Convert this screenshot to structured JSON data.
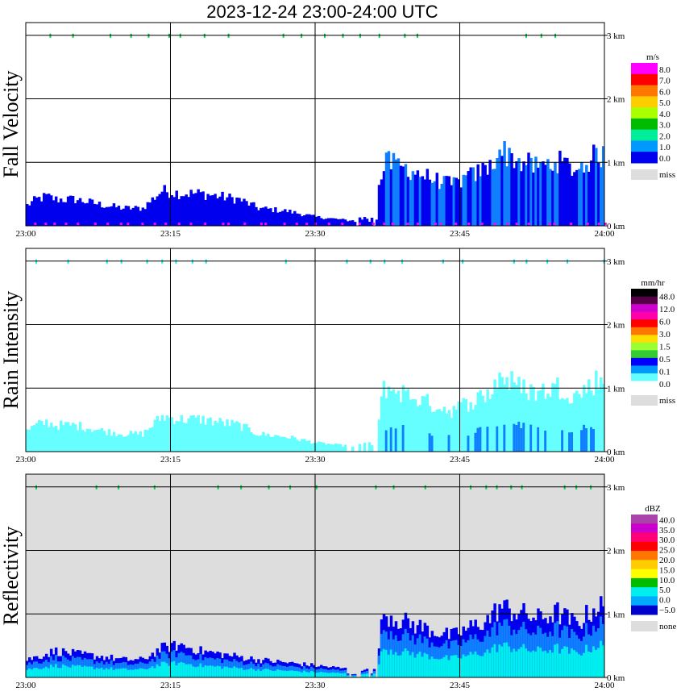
{
  "title": "2023-12-24   23:00-24:00 UTC",
  "x_ticks": [
    "23:00",
    "23:15",
    "23:30",
    "23:45",
    "24:00"
  ],
  "y_ticks": [
    "0 km",
    "1 km",
    "2 km",
    "3 km"
  ],
  "colors": {
    "ice_blue": "#0000ee",
    "cyan_light": "#66ffff",
    "mid_blue": "#0f7fff",
    "bg_gray": "#dddddd",
    "green": "#00cc44"
  },
  "chart_data": [
    {
      "type": "heatmap",
      "ylabel": "Fall Velocity",
      "x_range": [
        "23:00",
        "24:00"
      ],
      "y_range_km": [
        0,
        3.2
      ],
      "grid": true,
      "background": "white",
      "colorbar": {
        "unit": "m/s",
        "labels": [
          "8.0",
          "7.0",
          "6.0",
          "5.0",
          "4.0",
          "3.0",
          "2.0",
          "1.0",
          "0.0"
        ],
        "colors": [
          "#ff00ff",
          "#ff0000",
          "#ff7700",
          "#ffcc00",
          "#aaff00",
          "#00bb00",
          "#00ee99",
          "#0099ff",
          "#0000ee"
        ],
        "miss_label": "miss",
        "miss_color": "#dddddd"
      },
      "echo_top_km": [
        [
          0,
          0.35
        ],
        [
          1,
          0.45
        ],
        [
          2,
          0.5
        ],
        [
          3,
          0.45
        ],
        [
          5,
          0.45
        ],
        [
          8,
          0.35
        ],
        [
          10,
          0.3
        ],
        [
          12,
          0.3
        ],
        [
          14,
          0.6
        ],
        [
          16,
          0.55
        ],
        [
          18,
          0.55
        ],
        [
          20,
          0.5
        ],
        [
          22,
          0.45
        ],
        [
          24,
          0.3
        ],
        [
          27,
          0.25
        ],
        [
          30,
          0.15
        ],
        [
          33,
          0.1
        ],
        [
          36,
          0.1
        ],
        [
          37,
          1.1
        ],
        [
          39,
          1.0
        ],
        [
          42,
          0.8
        ],
        [
          44,
          0.7
        ],
        [
          46,
          0.85
        ],
        [
          48,
          1.0
        ],
        [
          49,
          1.3
        ],
        [
          51,
          1.1
        ],
        [
          53,
          1.0
        ],
        [
          55,
          1.1
        ],
        [
          57,
          0.95
        ],
        [
          59,
          1.2
        ],
        [
          60,
          1.2
        ]
      ]
    },
    {
      "type": "heatmap",
      "ylabel": "Rain Intensity",
      "x_range": [
        "23:00",
        "24:00"
      ],
      "y_range_km": [
        0,
        3.2
      ],
      "grid": true,
      "background": "white",
      "colorbar": {
        "unit": "mm/hr",
        "labels": [
          "48.0",
          "12.0",
          "6.0",
          "3.0",
          "1.5",
          "0.5",
          "0.1",
          "0.0"
        ],
        "colors": [
          "#000000",
          "#550044",
          "#cc00cc",
          "#ff00aa",
          "#ff0000",
          "#ff7700",
          "#ffdd00",
          "#99ff33",
          "#33cc33",
          "#0000ff",
          "#0099ff",
          "#66ffff",
          "#ffffff"
        ],
        "miss_label": "miss",
        "miss_color": "#dddddd"
      },
      "echo_top_km": [
        [
          0,
          0.35
        ],
        [
          1,
          0.45
        ],
        [
          2,
          0.5
        ],
        [
          3,
          0.45
        ],
        [
          5,
          0.45
        ],
        [
          8,
          0.35
        ],
        [
          10,
          0.3
        ],
        [
          12,
          0.3
        ],
        [
          14,
          0.6
        ],
        [
          16,
          0.55
        ],
        [
          18,
          0.55
        ],
        [
          20,
          0.5
        ],
        [
          22,
          0.45
        ],
        [
          24,
          0.3
        ],
        [
          27,
          0.25
        ],
        [
          30,
          0.15
        ],
        [
          33,
          0.1
        ],
        [
          36,
          0.1
        ],
        [
          37,
          1.1
        ],
        [
          39,
          1.0
        ],
        [
          42,
          0.8
        ],
        [
          44,
          0.7
        ],
        [
          46,
          0.85
        ],
        [
          48,
          1.0
        ],
        [
          49,
          1.3
        ],
        [
          51,
          1.1
        ],
        [
          53,
          1.0
        ],
        [
          55,
          1.1
        ],
        [
          57,
          0.95
        ],
        [
          59,
          1.2
        ],
        [
          60,
          1.2
        ]
      ]
    },
    {
      "type": "heatmap",
      "ylabel": "Reflectivity",
      "x_range": [
        "23:00",
        "24:00"
      ],
      "y_range_km": [
        0,
        3.2
      ],
      "grid": true,
      "background": "gray",
      "colorbar": {
        "unit": "dBZ",
        "labels": [
          "40.0",
          "35.0",
          "30.0",
          "25.0",
          "20.0",
          "15.0",
          "10.0",
          "5.0",
          "0.0",
          "−5.0"
        ],
        "colors": [
          "#aa44aa",
          "#cc00cc",
          "#ff0077",
          "#ff0000",
          "#ff7700",
          "#ffcc00",
          "#ffff00",
          "#00bb00",
          "#00eeee",
          "#00aaff",
          "#0000cc"
        ],
        "miss_label": "none",
        "miss_color": "#dddddd"
      },
      "echo_top_km": [
        [
          0,
          0.3
        ],
        [
          1,
          0.35
        ],
        [
          2,
          0.4
        ],
        [
          3,
          0.45
        ],
        [
          5,
          0.4
        ],
        [
          8,
          0.35
        ],
        [
          10,
          0.3
        ],
        [
          12,
          0.3
        ],
        [
          14,
          0.5
        ],
        [
          16,
          0.55
        ],
        [
          18,
          0.45
        ],
        [
          20,
          0.4
        ],
        [
          22,
          0.35
        ],
        [
          24,
          0.3
        ],
        [
          27,
          0.25
        ],
        [
          30,
          0.2
        ],
        [
          33,
          0.15
        ],
        [
          36,
          0.1
        ],
        [
          37,
          1.1
        ],
        [
          39,
          0.95
        ],
        [
          42,
          0.8
        ],
        [
          44,
          0.7
        ],
        [
          46,
          0.85
        ],
        [
          48,
          1.0
        ],
        [
          49,
          1.2
        ],
        [
          51,
          1.1
        ],
        [
          53,
          1.0
        ],
        [
          55,
          1.1
        ],
        [
          57,
          0.9
        ],
        [
          59,
          1.2
        ],
        [
          60,
          1.2
        ]
      ]
    }
  ]
}
